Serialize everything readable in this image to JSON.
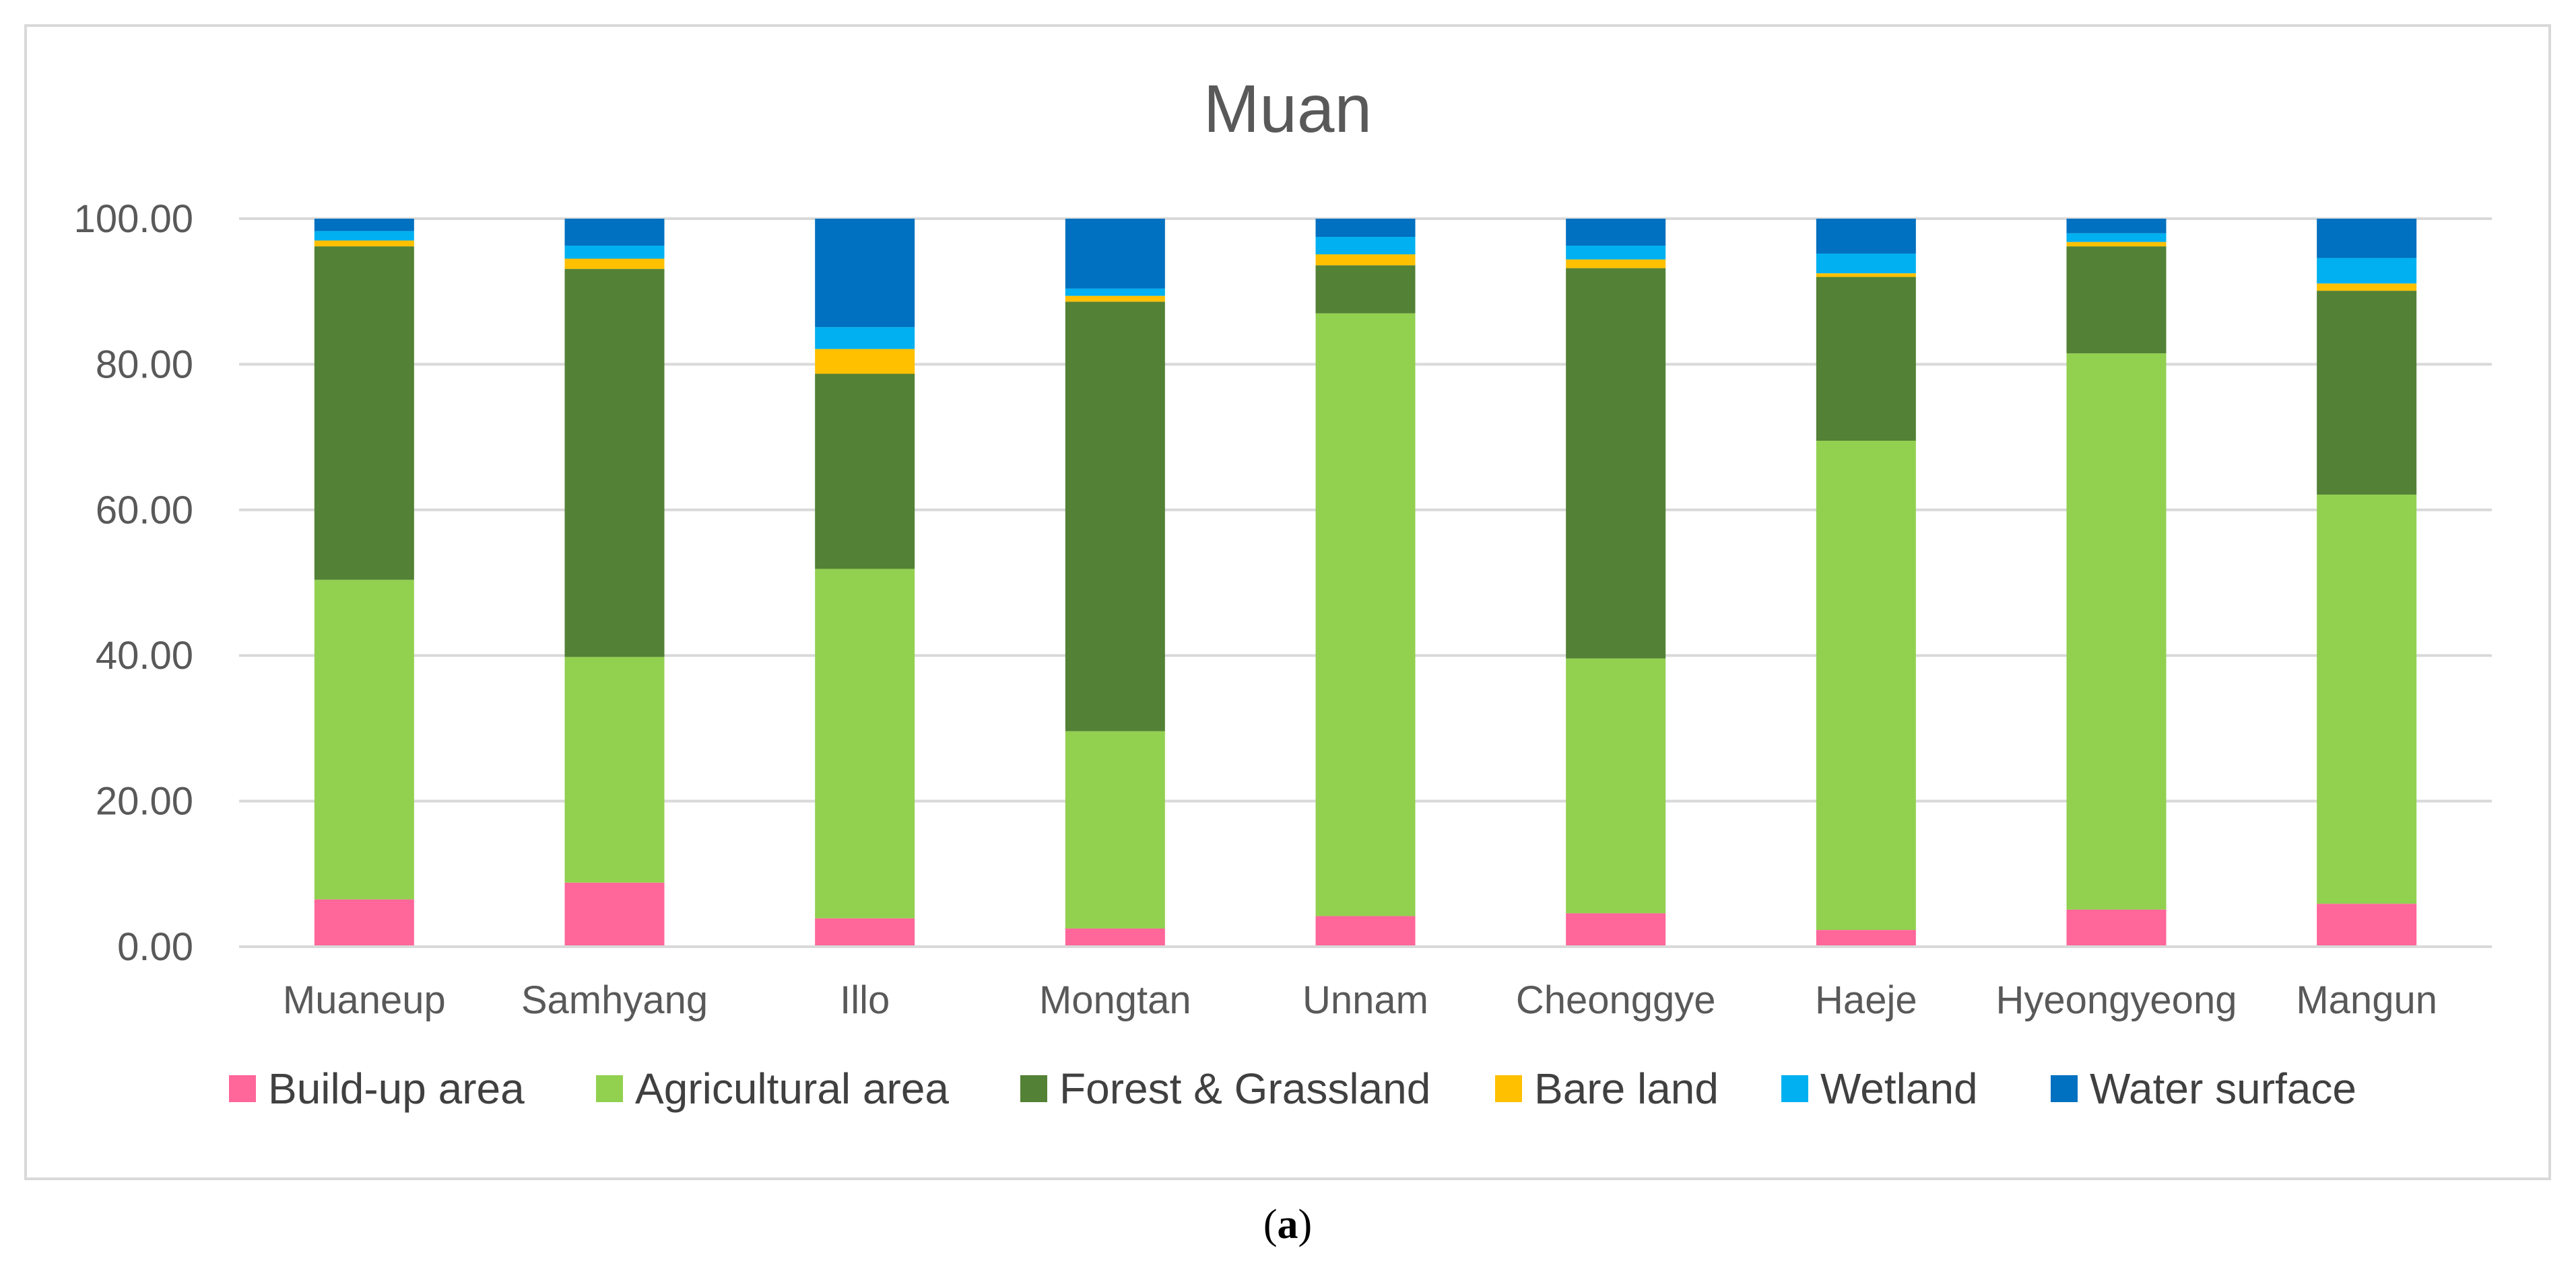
{
  "chart_data": {
    "type": "bar",
    "stacked": true,
    "title": "Muan",
    "xlabel": "",
    "ylabel": "",
    "ylim": [
      0,
      100
    ],
    "y_ticks": [
      "0.00",
      "20.00",
      "40.00",
      "60.00",
      "80.00",
      "100.00"
    ],
    "grid": true,
    "legend_position": "bottom",
    "categories": [
      "Muaneup",
      "Samhyang",
      "Illo",
      "Mongtan",
      "Unnam",
      "Cheonggye",
      "Haeje",
      "Hyeongyeong",
      "Mangun"
    ],
    "series": [
      {
        "name": "Build-up area",
        "color": "#ff6699",
        "values": [
          6.5,
          8.8,
          3.9,
          2.5,
          4.2,
          4.6,
          2.3,
          5.1,
          5.9
        ]
      },
      {
        "name": "Agricultural area",
        "color": "#92d050",
        "values": [
          43.9,
          31.0,
          48.0,
          27.1,
          82.8,
          35.0,
          67.2,
          76.4,
          56.2
        ]
      },
      {
        "name": "Forest & Grassland",
        "color": "#538135",
        "values": [
          45.8,
          53.3,
          26.8,
          59.0,
          6.6,
          53.6,
          22.5,
          14.7,
          28.0
        ]
      },
      {
        "name": "Bare land",
        "color": "#ffc000",
        "values": [
          0.8,
          1.4,
          3.4,
          0.8,
          1.5,
          1.2,
          0.5,
          0.6,
          1.0
        ]
      },
      {
        "name": "Wetland",
        "color": "#00b0f0",
        "values": [
          1.3,
          1.8,
          3.0,
          1.0,
          2.4,
          1.9,
          2.7,
          1.2,
          3.5
        ]
      },
      {
        "name": "Water surface",
        "color": "#0070c0",
        "values": [
          1.7,
          3.7,
          14.9,
          9.6,
          2.5,
          3.7,
          4.8,
          2.0,
          5.4
        ]
      }
    ]
  },
  "caption": {
    "open": "(",
    "letter": "a",
    "close": ")"
  }
}
